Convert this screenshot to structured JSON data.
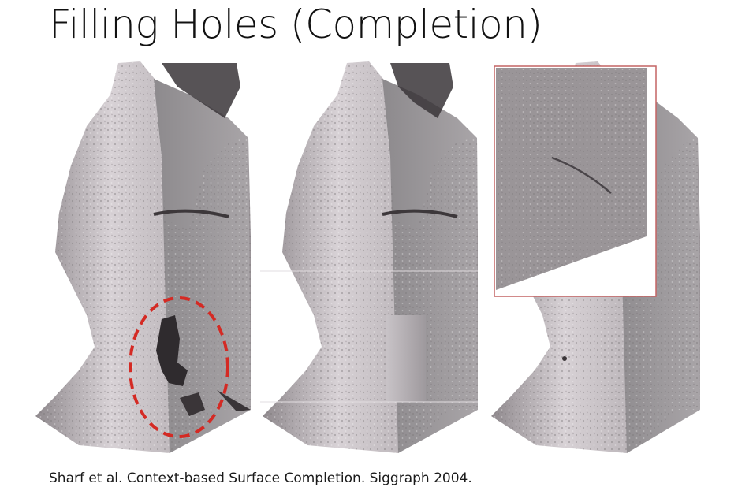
{
  "slide": {
    "title": "Filling Holes (Completion)",
    "caption": "Sharf et al. Context-based Surface Completion. Siggraph 2004."
  },
  "figure": {
    "panels": [
      "input-with-hole",
      "smooth-fill",
      "context-based-completion"
    ],
    "highlight_color": "#d42a24",
    "surface_color": "#a7a2a6",
    "inset_border_color": "#c46464"
  }
}
